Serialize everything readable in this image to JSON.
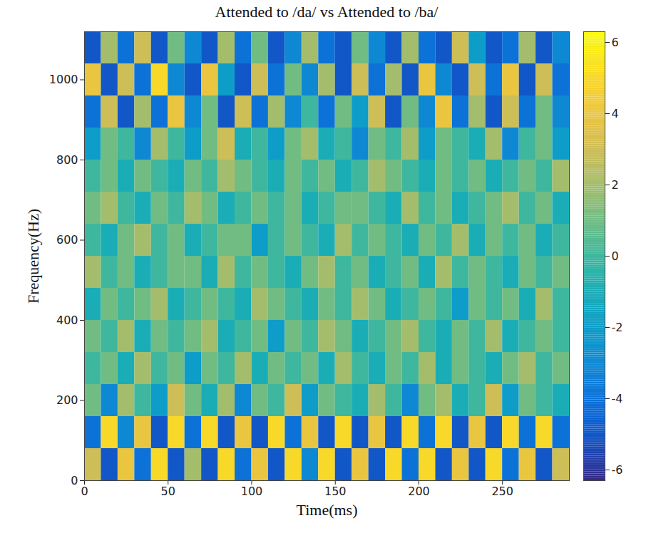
{
  "chart_data": {
    "type": "heatmap",
    "title": "Attended to /da/ vs Attended to /ba/",
    "xlabel": "Time(ms)",
    "ylabel": "Frequency(Hz)",
    "xlim": [
      0,
      290
    ],
    "ylim": [
      0,
      1120
    ],
    "xticks": [
      0,
      50,
      100,
      150,
      200,
      250
    ],
    "yticks": [
      0,
      200,
      400,
      600,
      800,
      1000
    ],
    "x": [
      5,
      15,
      25,
      35,
      45,
      55,
      65,
      75,
      85,
      95,
      105,
      115,
      125,
      135,
      145,
      155,
      165,
      175,
      185,
      195,
      205,
      215,
      225,
      235,
      245,
      255,
      265,
      275,
      285
    ],
    "y": [
      40,
      120,
      200,
      280,
      360,
      440,
      520,
      600,
      680,
      760,
      840,
      920,
      1000,
      1080
    ],
    "values": [
      [
        3,
        -5,
        4,
        -4,
        5,
        -5,
        2,
        -5,
        5,
        -4,
        4,
        -5,
        5,
        -3,
        5,
        -5,
        4,
        -5,
        5,
        -4,
        5,
        -5,
        4,
        -5,
        5,
        -4,
        4,
        -5,
        3
      ],
      [
        -4,
        5,
        -3,
        4,
        -5,
        5,
        -4,
        5,
        -5,
        4,
        -5,
        5,
        -4,
        4,
        -5,
        5,
        -5,
        4,
        -5,
        5,
        -4,
        5,
        -5,
        4,
        -5,
        5,
        -4,
        5,
        -4
      ],
      [
        1,
        -3,
        2,
        0,
        -2,
        3,
        1,
        -1,
        2,
        -3,
        1,
        0,
        3,
        -2,
        1,
        0,
        -1,
        2,
        0,
        -3,
        1,
        2,
        -1,
        0,
        3,
        -2,
        1,
        0,
        -1
      ],
      [
        0,
        1,
        -1,
        2,
        0,
        1,
        -2,
        1,
        0,
        2,
        -1,
        1,
        0,
        1,
        -1,
        2,
        0,
        -1,
        1,
        0,
        2,
        -1,
        1,
        0,
        -1,
        1,
        2,
        0,
        1
      ],
      [
        1,
        0,
        2,
        -1,
        1,
        0,
        1,
        2,
        -1,
        0,
        1,
        -2,
        1,
        0,
        2,
        1,
        -1,
        0,
        1,
        2,
        0,
        -1,
        1,
        0,
        2,
        -1,
        0,
        1,
        0
      ],
      [
        -1,
        1,
        0,
        1,
        2,
        -1,
        0,
        1,
        0,
        -1,
        2,
        1,
        0,
        -1,
        1,
        0,
        2,
        1,
        -1,
        0,
        1,
        0,
        -2,
        1,
        0,
        1,
        -1,
        2,
        0
      ],
      [
        2,
        0,
        1,
        -1,
        0,
        1,
        1,
        -1,
        2,
        0,
        1,
        0,
        -1,
        1,
        2,
        0,
        1,
        -1,
        0,
        1,
        -1,
        2,
        0,
        1,
        0,
        -1,
        1,
        0,
        1
      ],
      [
        0,
        -1,
        1,
        2,
        0,
        1,
        -1,
        0,
        1,
        1,
        -2,
        0,
        1,
        0,
        -1,
        2,
        0,
        1,
        0,
        -1,
        1,
        0,
        2,
        -1,
        1,
        0,
        1,
        -1,
        0
      ],
      [
        1,
        2,
        0,
        -1,
        1,
        0,
        2,
        1,
        -1,
        0,
        1,
        0,
        1,
        -1,
        0,
        1,
        1,
        0,
        -1,
        2,
        0,
        1,
        -1,
        0,
        1,
        2,
        0,
        1,
        -1
      ],
      [
        0,
        1,
        -1,
        1,
        0,
        -1,
        1,
        0,
        2,
        1,
        0,
        -1,
        1,
        0,
        1,
        -1,
        0,
        2,
        1,
        0,
        -1,
        1,
        0,
        1,
        -1,
        0,
        1,
        0,
        2
      ],
      [
        -2,
        1,
        0,
        -3,
        2,
        0,
        -2,
        1,
        3,
        -1,
        0,
        -2,
        1,
        2,
        -1,
        0,
        -3,
        1,
        0,
        2,
        -2,
        1,
        0,
        -1,
        2,
        -3,
        0,
        1,
        -2
      ],
      [
        -4,
        3,
        -5,
        2,
        -4,
        4,
        -3,
        1,
        -5,
        3,
        -4,
        2,
        -3,
        0,
        -4,
        1,
        -2,
        3,
        -5,
        1,
        -3,
        4,
        -4,
        2,
        -5,
        3,
        -4,
        1,
        -3
      ],
      [
        4,
        -5,
        3,
        -4,
        5,
        -3,
        -5,
        4,
        -2,
        -5,
        3,
        -4,
        1,
        -3,
        2,
        -5,
        3,
        -4,
        2,
        -5,
        4,
        -3,
        -5,
        3,
        -4,
        4,
        -5,
        3,
        -4
      ],
      [
        -5,
        2,
        -4,
        3,
        -5,
        1,
        -3,
        -5,
        2,
        -4,
        1,
        -5,
        -3,
        2,
        -4,
        -5,
        1,
        -3,
        -5,
        2,
        -4,
        -5,
        3,
        -2,
        -5,
        -4,
        2,
        -5,
        -3
      ]
    ],
    "colorbar": {
      "range": [
        -6.3,
        6.3
      ],
      "ticks": [
        -6,
        -4,
        -2,
        0,
        2,
        4,
        6
      ]
    }
  }
}
